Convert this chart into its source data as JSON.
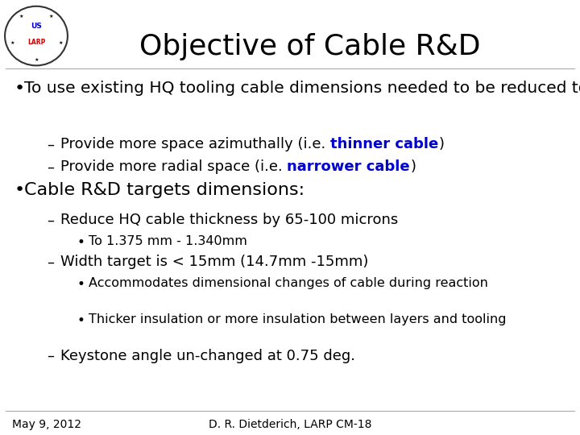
{
  "title": "Objective of Cable R&D",
  "title_fontsize": 26,
  "background_color": "#ffffff",
  "text_color": "#000000",
  "blue_color": "#0000cd",
  "footer_left": "May 9, 2012",
  "footer_center": "D. R. Dietderich, LARP CM-18",
  "footer_fontsize": 10,
  "content": [
    {
      "level": 0,
      "fontsize": 14.5,
      "bold": false,
      "simple_text": "To use existing HQ tooling cable dimensions needed to be reduced to:"
    },
    {
      "level": 1,
      "fontsize": 13,
      "bold": false,
      "parts": [
        {
          "text": "Provide more space azimuthally (i.e. ",
          "bold": false,
          "color": "#000000"
        },
        {
          "text": "thinner cable",
          "bold": true,
          "color": "#0000cd"
        },
        {
          "text": ")",
          "bold": false,
          "color": "#000000"
        }
      ]
    },
    {
      "level": 1,
      "fontsize": 13,
      "bold": false,
      "parts": [
        {
          "text": "Provide more radial space (i.e. ",
          "bold": false,
          "color": "#000000"
        },
        {
          "text": "narrower cable",
          "bold": true,
          "color": "#0000cd"
        },
        {
          "text": ")",
          "bold": false,
          "color": "#000000"
        }
      ]
    },
    {
      "level": 0,
      "fontsize": 16,
      "bold": false,
      "simple_text": "Cable R&D targets dimensions:"
    },
    {
      "level": 1,
      "fontsize": 13,
      "bold": false,
      "simple_text": "Reduce HQ cable thickness by 65-100 microns"
    },
    {
      "level": 2,
      "fontsize": 11.5,
      "bold": false,
      "simple_text": "To 1.375 mm - 1.340mm"
    },
    {
      "level": 1,
      "fontsize": 13,
      "bold": false,
      "simple_text": "Width target is < 15mm (14.7mm -15mm)"
    },
    {
      "level": 2,
      "fontsize": 11.5,
      "bold": false,
      "simple_text": "Accommodates dimensional changes of cable during reaction"
    },
    {
      "level": 2,
      "fontsize": 11.5,
      "bold": false,
      "simple_text": "Thicker insulation or more insulation between layers and tooling"
    },
    {
      "level": 1,
      "fontsize": 13,
      "bold": false,
      "simple_text": "Keystone angle un-changed at 0.75 deg."
    }
  ]
}
